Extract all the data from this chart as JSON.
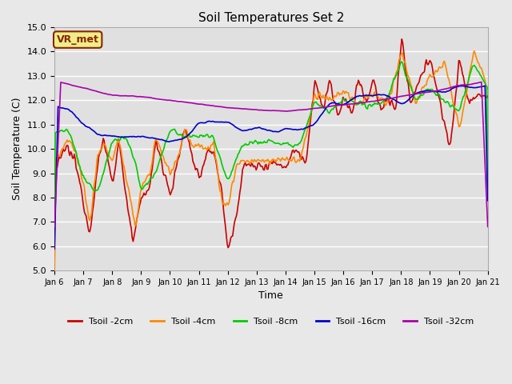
{
  "title": "Soil Temperatures Set 2",
  "xlabel": "Time",
  "ylabel": "Soil Temperature (C)",
  "ylim": [
    5.0,
    15.0
  ],
  "yticks": [
    5.0,
    6.0,
    7.0,
    8.0,
    9.0,
    10.0,
    11.0,
    12.0,
    13.0,
    14.0,
    15.0
  ],
  "fig_bg": "#e8e8e8",
  "plot_bg": "#e0e0e0",
  "grid_color": "#ffffff",
  "line_colors": {
    "2cm": "#cc0000",
    "4cm": "#ff8800",
    "8cm": "#00cc00",
    "16cm": "#0000cc",
    "32cm": "#aa00aa"
  },
  "legend_labels": [
    "Tsoil -2cm",
    "Tsoil -4cm",
    "Tsoil -8cm",
    "Tsoil -16cm",
    "Tsoil -32cm"
  ],
  "annotation_text": "VR_met",
  "annotation_box_color": "#eeee88",
  "annotation_box_edge": "#8b2500",
  "x_tick_labels": [
    "Jan 6",
    "Jan 7",
    "Jan 8",
    "Jan 9",
    "Jan 10",
    "Jan 11",
    "Jan 12",
    "Jan 13",
    "Jan 14",
    "Jan 15",
    "Jan 16",
    "Jan 17",
    "Jan 18",
    "Jan 19",
    "Jan 20",
    "Jan 21"
  ],
  "n_points": 480
}
